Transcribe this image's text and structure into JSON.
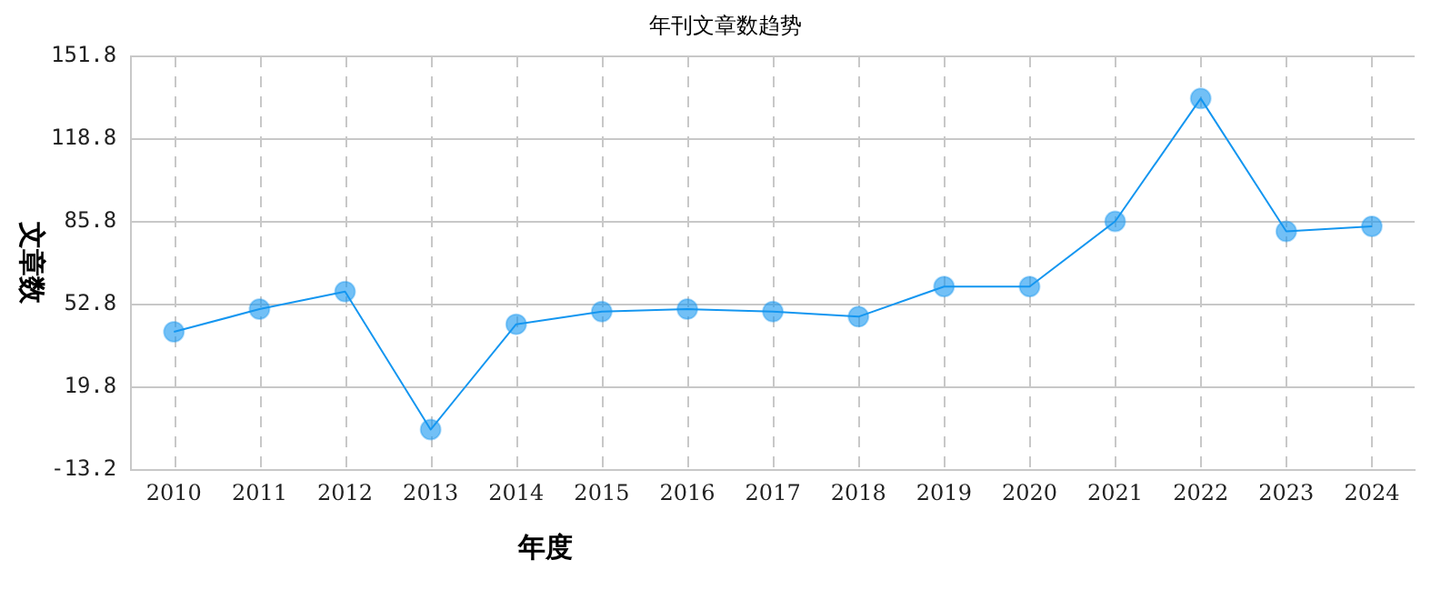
{
  "chart_data": {
    "type": "line",
    "title": "年刊文章数趋势",
    "xlabel": "年度",
    "ylabel": "文章数",
    "categories": [
      "2010",
      "2011",
      "2012",
      "2013",
      "2014",
      "2015",
      "2016",
      "2017",
      "2018",
      "2019",
      "2020",
      "2021",
      "2022",
      "2023",
      "2024"
    ],
    "series": [
      {
        "color": "#1496f0",
        "values": [
          42,
          51,
          58,
          3,
          45,
          50,
          51,
          50,
          48,
          60,
          60,
          86,
          135,
          82,
          84
        ]
      }
    ],
    "ylim": [
      -13.2,
      151.8
    ],
    "yticks": [
      -13.2,
      19.8,
      52.8,
      85.8,
      118.8,
      151.8
    ],
    "grid": true,
    "legend": false,
    "marker": "circle",
    "line_style": "solid"
  }
}
